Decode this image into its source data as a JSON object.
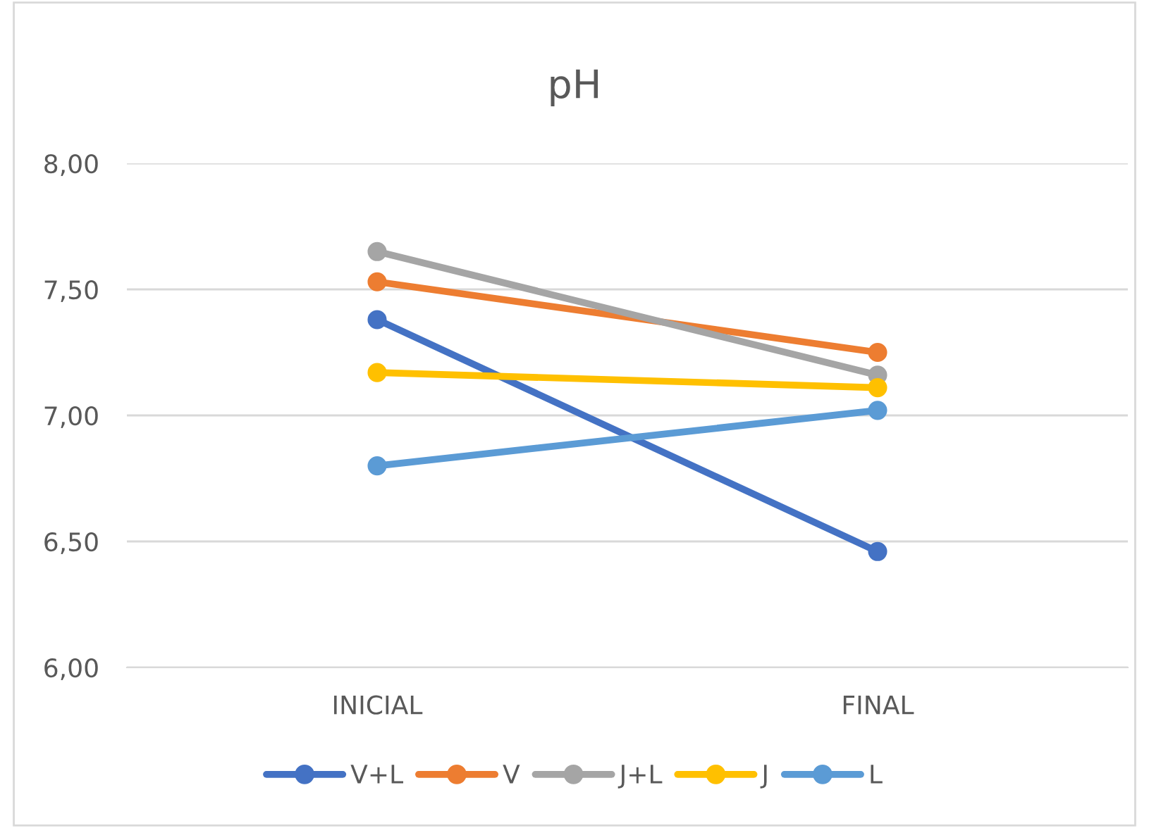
{
  "chart_data": {
    "type": "line",
    "title": "pH",
    "categories": [
      "INICIAL",
      "FINAL"
    ],
    "series": [
      {
        "name": "V+L",
        "color": "#4472c4",
        "values": [
          7.38,
          6.46
        ]
      },
      {
        "name": "V",
        "color": "#ed7d31",
        "values": [
          7.53,
          7.25
        ]
      },
      {
        "name": "J+L",
        "color": "#a5a5a5",
        "values": [
          7.65,
          7.16
        ]
      },
      {
        "name": "J",
        "color": "#ffc000",
        "values": [
          7.17,
          7.11
        ]
      },
      {
        "name": "L",
        "color": "#5b9bd5",
        "values": [
          6.8,
          7.02
        ]
      }
    ],
    "ylim": [
      6,
      8
    ],
    "yticks": [
      {
        "value": 6,
        "label": "6,00"
      },
      {
        "value": 6.5,
        "label": "6,50"
      },
      {
        "value": 7,
        "label": "7,00"
      },
      {
        "value": 7.5,
        "label": "7,50"
      },
      {
        "value": 8,
        "label": "8,00"
      }
    ],
    "grid": "y",
    "legend": "bottom",
    "marker": "circle",
    "line_style": "solid"
  }
}
